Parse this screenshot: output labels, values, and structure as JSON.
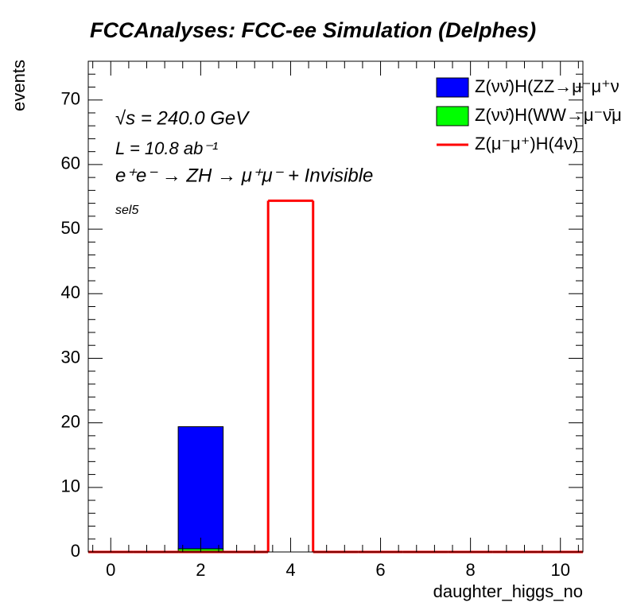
{
  "chart_data": {
    "type": "histogram",
    "title": "FCCAnalyses: FCC-ee Simulation (Delphes)",
    "x_label": "daughter_higgs_no",
    "y_label": "events",
    "annotations": [
      "√s = 240.0 GeV",
      "L = 10.8 ab⁻¹",
      "e⁺e⁻ → ZH → μ⁺μ⁻ + Invisible",
      "sel5"
    ],
    "bins": [
      -0.5,
      0.5,
      1.5,
      2.5,
      3.5,
      4.5,
      5.5,
      6.5,
      7.5,
      8.5,
      9.5,
      10.5
    ],
    "stacked": true,
    "series": [
      {
        "name": "Z(νν̄)H(ZZ→μ⁻μ⁺ν",
        "color": "#0000ff",
        "style": "fill",
        "stack_order": 1,
        "values": [
          0,
          0,
          18.9,
          0,
          0,
          0,
          0,
          0,
          0,
          0,
          0
        ]
      },
      {
        "name": "Z(νν̄)H(WW→μ⁻ν̄μ",
        "color": "#00ff00",
        "style": "fill",
        "stack_order": 0,
        "values": [
          0,
          0,
          0.5,
          0,
          0,
          0,
          0,
          0,
          0,
          0,
          0
        ]
      },
      {
        "name": "Z(μ⁻μ⁺)H(4ν)",
        "color": "#ff0000",
        "style": "step",
        "values": [
          0,
          0,
          0,
          0,
          54.4,
          0,
          0,
          0,
          0,
          0,
          0
        ]
      }
    ],
    "xlim": [
      -0.5,
      10.5
    ],
    "ylim": [
      0,
      76
    ],
    "xticks": [
      0,
      2,
      4,
      6,
      8,
      10
    ],
    "yticks": [
      0,
      10,
      20,
      30,
      40,
      50,
      60,
      70
    ],
    "legend": "upper right"
  }
}
